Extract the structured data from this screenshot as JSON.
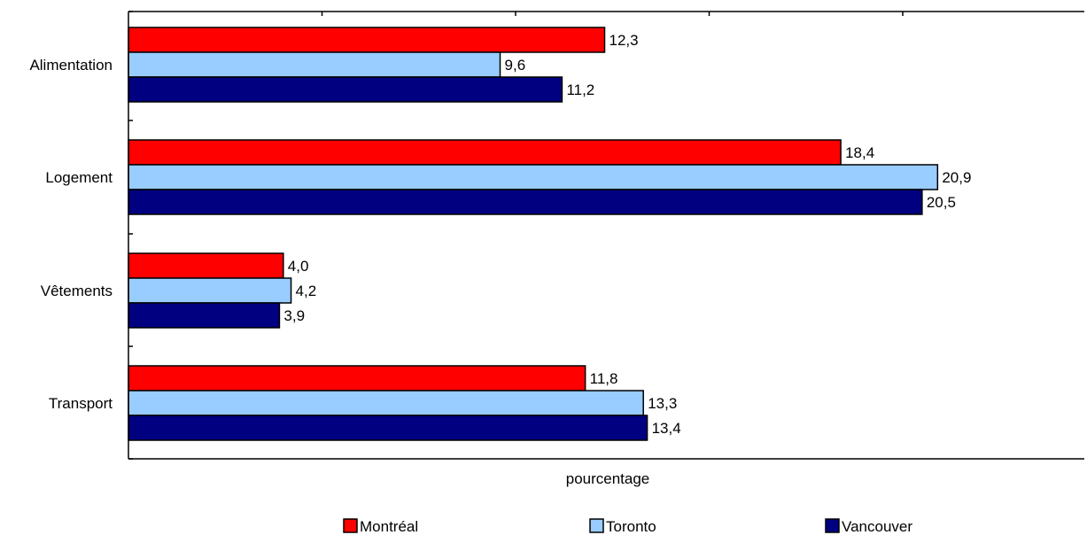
{
  "chart_data": {
    "type": "bar",
    "orientation": "horizontal",
    "categories": [
      "Alimentation",
      "Logement",
      "Vêtements",
      "Transport"
    ],
    "series": [
      {
        "name": "Montréal",
        "color": "#ff0000",
        "values": [
          12.3,
          18.4,
          4.0,
          11.8
        ],
        "labels": [
          "12,3",
          "18,4",
          "4,0",
          "11,8"
        ]
      },
      {
        "name": "Toronto",
        "color": "#99ccff",
        "values": [
          9.6,
          20.9,
          4.2,
          13.3
        ],
        "labels": [
          "9,6",
          "20,9",
          "4,2",
          "13,3"
        ]
      },
      {
        "name": "Vancouver",
        "color": "#000080",
        "values": [
          11.2,
          20.5,
          3.9,
          13.4
        ],
        "labels": [
          "11,2",
          "20,5",
          "3,9",
          "13,4"
        ]
      }
    ],
    "xlabel": "pourcentage",
    "xlim": [
      0,
      25
    ],
    "tick_labels_shown": false,
    "grid": false,
    "legend_position": "bottom"
  }
}
